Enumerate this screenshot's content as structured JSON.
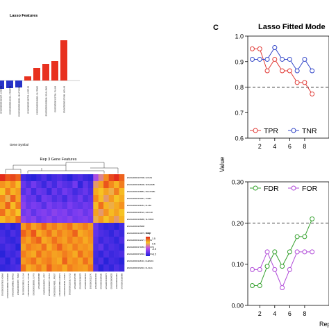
{
  "colors": {
    "red": "#e8311f",
    "blue": "#2733c8",
    "tpr": "#e03a36",
    "tnr": "#3246c8",
    "fdr": "#33a02c",
    "for": "#b04ad8",
    "heat_low": "#2a2ad8",
    "heat_mid": "#7a3cf0",
    "heat_high": "#e2231a"
  },
  "panel_b": {
    "title": "Lasso Features",
    "xlabel": "Gene Symbol"
  },
  "heatmap": {
    "title": "Rep 3 Gene Features",
    "legend_title": "Key",
    "row_labels": [
      "ENSG00000167608, HOXA9",
      "ENSG00000198408, SDS22MB",
      "ENSG00000198881, MAATZ2BL",
      "ENSG00000163057, ITGB3",
      "ENSG00000198151, PLLB4",
      "ENSG00000198722, LRC138",
      "ENSG00000168085, SLYFB60",
      "ENSG00000205898",
      "ENSG00000120875, UPRP",
      "ENSG00000142227, CRUS1",
      "ENSG00000174083, LRRC674",
      "ENSG00000072694, CRISP11",
      "ENSG00000118401, CHEMD1",
      "ENSG00000152016, KLF12A"
    ],
    "col_labels": [
      "ENSG00000167608, HOXA9",
      "ENSG00000198408, SDS22MB",
      "ENSG00000198881, MAATZ2",
      "ENSG00000163057, ITGB3",
      "ENSG00000198151, PLLB4",
      "ENSG00000198722, LRC138",
      "ENSG00000168085, SLYFB",
      "ENSG00000205898",
      "ENSG00000120875, UPRP",
      "ENSG00000142227, CRUS1",
      "ENSG00000174083, LRRC67",
      "ENSG00000072694, CRISP1",
      "ENSG00000118401, CHEMD",
      "ENSG00000152016, KLF12",
      "ENSG00000175785",
      "ENSG00000106123",
      "ENSG00000140314",
      "ENSG00000211770",
      "ENSG00000114541",
      "ENSG00000199130",
      "ENSG00000164674",
      "ENSG00000084233",
      "ENSG00000111661",
      "ENSG00000165868"
    ]
  },
  "panel_c": {
    "letter": "C",
    "title": "Lasso Fitted Mode",
    "shared_ylabel": "Value",
    "shared_xlabel": "Rep"
  },
  "chart_data": [
    {
      "type": "bar",
      "title": "Lasso Features",
      "xlabel": "Gene Symbol",
      "ylabel": "",
      "categories": [
        "ENSG00000189157, LRC101",
        "ENSG00000182461, CRISP11",
        "ENSG00000198881, MAATZ2BL",
        "ENSG00000198722, LRC138",
        "ENSG00000168085, SLYFB60",
        "ENSG00000205898, SGALJB66",
        "ENSG00000121759, PLLB4",
        "ENSG00000167608, HOXA9"
      ],
      "values": [
        -0.12,
        -0.11,
        -0.1,
        0.06,
        0.18,
        0.24,
        0.28,
        0.58
      ],
      "ylim": [
        -0.2,
        0.7
      ]
    },
    {
      "type": "heatmap",
      "title": "Rep 3 Gene Features",
      "scale": [
        -2,
        2
      ],
      "legend_ticks": [
        "1.5",
        "0.5",
        "-0.5",
        "-1.5"
      ],
      "rows": 14,
      "cols": 24,
      "values": [
        [
          1.9,
          1.6,
          1.7,
          1.5,
          -1.6,
          -1.8,
          -1.9,
          -1.7,
          -1.5,
          -1.8,
          -1.6,
          -1.5,
          -1.7,
          -1.9,
          -1.6,
          -1.5,
          -1.7,
          -1.8,
          -0.4,
          0.2,
          1.2,
          1.7,
          1.9,
          1.5
        ],
        [
          1.1,
          0.8,
          1.2,
          0.6,
          -1.2,
          -1.5,
          -1.1,
          -1.4,
          -1.7,
          -1.3,
          -1.6,
          -1.2,
          -1.4,
          -1.5,
          -1.1,
          -1.8,
          -1.3,
          -1.6,
          0.3,
          0.9,
          1.6,
          1.2,
          0.7,
          1.3
        ],
        [
          0.5,
          1.3,
          0.7,
          1.0,
          -1.4,
          -1.1,
          -1.6,
          -1.2,
          -1.3,
          -1.7,
          -1.2,
          -1.5,
          -1.1,
          -1.3,
          -1.6,
          -1.4,
          -1.2,
          -1.5,
          0.8,
          0.5,
          0.9,
          0.4,
          1.3,
          0.6
        ],
        [
          1.2,
          0.4,
          1.5,
          0.9,
          -1.0,
          -1.3,
          -1.2,
          -1.6,
          -1.1,
          -1.2,
          -1.5,
          -1.3,
          -1.6,
          -1.2,
          -1.4,
          -1.1,
          -1.5,
          -1.3,
          1.2,
          0.6,
          0.3,
          1.0,
          0.5,
          0.8
        ],
        [
          0.9,
          1.5,
          0.6,
          1.3,
          -0.8,
          -1.2,
          -1.0,
          -1.1,
          -1.4,
          -1.0,
          -1.2,
          -1.1,
          -1.3,
          -1.0,
          -1.2,
          -1.3,
          -1.1,
          -1.2,
          0.6,
          1.4,
          0.7,
          0.4,
          0.8,
          1.1
        ],
        [
          1.4,
          0.7,
          1.1,
          0.5,
          -1.1,
          -0.9,
          -1.3,
          -1.0,
          -0.9,
          -1.1,
          -0.8,
          -1.0,
          -0.9,
          -1.2,
          -1.0,
          -0.9,
          -1.2,
          -1.0,
          0.9,
          0.3,
          1.1,
          0.6,
          0.9,
          0.5
        ],
        [
          0.6,
          1.0,
          0.8,
          1.4,
          -0.7,
          -1.0,
          -0.8,
          -1.2,
          -1.0,
          -0.8,
          -1.1,
          -0.9,
          -1.0,
          -0.8,
          -1.1,
          -1.0,
          -0.9,
          -1.1,
          0.4,
          1.0,
          0.5,
          0.9,
          0.3,
          0.7
        ],
        [
          -1.8,
          -1.6,
          -1.9,
          -1.7,
          1.0,
          1.4,
          0.9,
          1.2,
          1.5,
          1.1,
          1.3,
          1.0,
          1.2,
          1.4,
          0.9,
          1.1,
          1.3,
          1.0,
          -1.2,
          -1.6,
          -1.8,
          -1.7,
          -1.9,
          -1.6
        ],
        [
          -1.6,
          -1.8,
          -1.5,
          -1.7,
          1.5,
          1.2,
          1.6,
          0.8,
          1.1,
          1.4,
          0.9,
          1.3,
          1.0,
          1.2,
          1.5,
          0.8,
          1.0,
          1.2,
          -1.3,
          -1.5,
          -1.6,
          -1.8,
          -1.5,
          -1.7
        ],
        [
          -1.5,
          -1.7,
          -1.8,
          -1.6,
          1.2,
          0.9,
          1.3,
          1.5,
          0.8,
          1.0,
          1.4,
          1.1,
          0.9,
          1.3,
          1.0,
          1.2,
          0.8,
          1.1,
          -1.4,
          -1.7,
          -1.5,
          -1.6,
          -1.8,
          -1.5
        ],
        [
          -1.7,
          -1.5,
          -1.6,
          -1.9,
          0.9,
          1.3,
          1.1,
          1.0,
          1.4,
          0.8,
          1.2,
          1.5,
          1.1,
          0.9,
          1.3,
          1.0,
          1.1,
          0.9,
          -1.5,
          -1.3,
          -1.7,
          -1.5,
          -1.6,
          -1.8
        ],
        [
          -1.9,
          -1.6,
          -1.7,
          -1.5,
          1.3,
          1.0,
          0.8,
          1.4,
          1.0,
          1.2,
          0.9,
          1.0,
          1.3,
          1.1,
          0.8,
          1.4,
          1.0,
          1.2,
          -1.6,
          -1.8,
          -1.5,
          -1.7,
          -1.6,
          -1.5
        ],
        [
          -1.6,
          -1.9,
          -1.5,
          -1.8,
          1.0,
          1.2,
          1.4,
          0.9,
          1.2,
          1.3,
          1.0,
          0.8,
          1.5,
          1.0,
          1.2,
          0.9,
          1.4,
          1.0,
          -1.7,
          -1.5,
          -1.9,
          -1.6,
          -1.7,
          -1.9
        ],
        [
          -1.8,
          -1.7,
          -1.6,
          -1.5,
          1.4,
          0.8,
          1.0,
          1.3,
          0.9,
          1.5,
          1.1,
          1.2,
          0.8,
          1.3,
          1.1,
          1.0,
          0.9,
          1.3,
          -1.5,
          -1.9,
          -1.6,
          -1.8,
          -1.5,
          -1.7
        ]
      ]
    },
    {
      "type": "line",
      "title": "Lasso Fitted Mode",
      "xlabel": "Rep",
      "ylabel": "Value",
      "x": [
        1,
        2,
        3,
        4,
        5,
        6,
        7,
        8,
        9
      ],
      "xticks": [
        2,
        4,
        6,
        8
      ],
      "ylim": [
        0.6,
        1.0
      ],
      "yticks": [
        "0.6",
        "0.7",
        "0.8",
        "0.9",
        "1.0"
      ],
      "hline": 0.8,
      "legend": "bottom-left",
      "series": [
        {
          "name": "TPR",
          "values": [
            0.95,
            0.95,
            0.864,
            0.909,
            0.864,
            0.864,
            0.818,
            0.818,
            0.773
          ]
        },
        {
          "name": "TNR",
          "values": [
            0.909,
            0.909,
            0.909,
            0.955,
            0.909,
            0.909,
            0.864,
            0.909,
            0.864
          ]
        }
      ]
    },
    {
      "type": "line",
      "title": "",
      "xlabel": "Rep",
      "ylabel": "Value",
      "x": [
        1,
        2,
        3,
        4,
        5,
        6,
        7,
        8,
        9
      ],
      "xticks": [
        2,
        4,
        6,
        8
      ],
      "ylim": [
        0.0,
        0.3
      ],
      "yticks": [
        "0.00",
        "0.10",
        "0.20",
        "0.30"
      ],
      "hline": 0.2,
      "legend": "top-left",
      "series": [
        {
          "name": "FDR",
          "values": [
            0.048,
            0.048,
            0.095,
            0.13,
            0.095,
            0.13,
            0.167,
            0.167,
            0.21
          ]
        },
        {
          "name": "FOR",
          "values": [
            0.087,
            0.087,
            0.13,
            0.087,
            0.043,
            0.087,
            0.13,
            0.13,
            0.13
          ]
        }
      ]
    }
  ]
}
